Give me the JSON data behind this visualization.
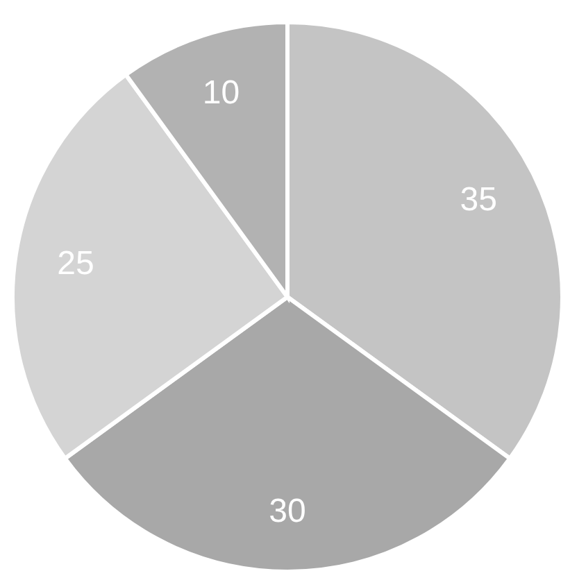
{
  "chart_data": {
    "type": "pie",
    "categories": [
      null,
      null,
      null,
      null
    ],
    "values": [
      35,
      30,
      25,
      10
    ],
    "colors": [
      "#c4c4c4",
      "#a8a8a8",
      "#d4d4d4",
      "#b2b2b2"
    ],
    "data_labels": true
  }
}
